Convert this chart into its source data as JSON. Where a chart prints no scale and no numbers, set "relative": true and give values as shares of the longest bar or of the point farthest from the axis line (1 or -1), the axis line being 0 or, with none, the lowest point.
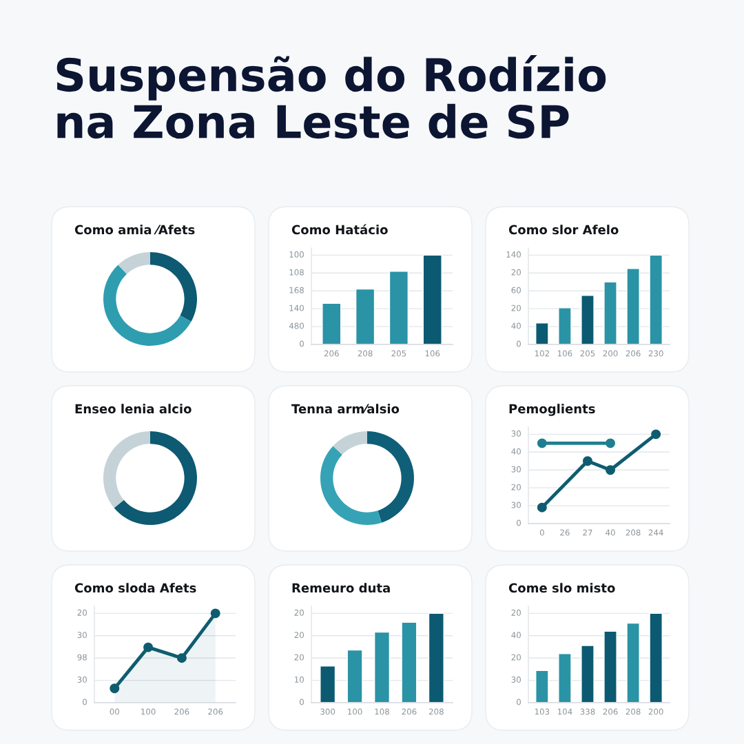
{
  "chart_data": [
    {
      "type": "other",
      "title": "Suspensão do Rodízio\nna Zona Leste de SP"
    },
    {
      "type": "donut",
      "title": "Como amia ⁄Afets",
      "values": [
        33,
        55,
        12
      ],
      "colors": [
        "#0d5a72",
        "#2f9db0",
        "#c5d3d8"
      ]
    },
    {
      "type": "bar",
      "title": "Como Hatácio",
      "relative": true,
      "categories": [
        "206",
        "208",
        "205",
        "106"
      ],
      "values": [
        0.46,
        0.62,
        0.82,
        1
      ],
      "colors": [
        "#2a93a6",
        "#2a93a6",
        "#2a93a6",
        "#0b5a72"
      ],
      "annotations": [
        "0",
        "480",
        "140",
        "168",
        "108",
        "100"
      ],
      "grid": "y"
    },
    {
      "type": "bar",
      "title": "Como slor Afelo",
      "relative": true,
      "categories": [
        "102",
        "106",
        "205",
        "200",
        "206",
        "230"
      ],
      "values": [
        0.24,
        0.41,
        0.55,
        0.7,
        0.85,
        1
      ],
      "colors": [
        "#0b5a72",
        "#2a93a6",
        "#0b5a72",
        "#2a93a6",
        "#2a93a6",
        "#2a93a6"
      ],
      "annotations": [
        "0",
        "40",
        "20",
        "60",
        "20",
        "140"
      ],
      "grid": "y"
    },
    {
      "type": "donut",
      "title": "Enseo lenia alcio",
      "values": [
        64,
        36
      ],
      "colors": [
        "#0d5a72",
        "#c5d3d8"
      ]
    },
    {
      "type": "donut",
      "title": "Tenna arm⁄alsio",
      "values": [
        45,
        42,
        13
      ],
      "colors": [
        "#0f5f78",
        "#35a3b5",
        "#c5d3d8"
      ]
    },
    {
      "type": "line",
      "title": "Pemoglients",
      "relative": true,
      "categories": [
        "0",
        "26",
        "27",
        "40",
        "208",
        "244"
      ],
      "series": [
        {
          "color": "#1f7f91",
          "x": [
            "0",
            "40"
          ],
          "values": [
            0.9,
            0.9
          ]
        },
        {
          "color": "#0f5c70",
          "x": [
            "0",
            "27",
            "40",
            "244"
          ],
          "values": [
            0.18,
            0.7,
            0.6,
            1
          ]
        }
      ],
      "annotations": [
        "0",
        "30",
        "20",
        "30",
        "40",
        "30"
      ],
      "grid": "y",
      "marker": "circle"
    },
    {
      "type": "area",
      "title": "Como sloda Afets",
      "relative": true,
      "categories": [
        "00",
        "100",
        "206",
        "206"
      ],
      "series": [
        {
          "color": "#0f5c70",
          "values": [
            0.16,
            0.62,
            0.5,
            1
          ]
        }
      ],
      "annotations": [
        "0",
        "30",
        "98",
        "30",
        "20"
      ],
      "grid": "y",
      "marker": "circle"
    },
    {
      "type": "bar",
      "title": "Remeuro duta",
      "relative": true,
      "categories": [
        "300",
        "100",
        "108",
        "206",
        "208"
      ],
      "values": [
        0.41,
        0.59,
        0.79,
        0.9,
        1
      ],
      "colors": [
        "#0b5a72",
        "#2a93a6",
        "#2a93a6",
        "#2a93a6",
        "#0b5a72"
      ],
      "annotations": [
        "0",
        "10",
        "20",
        "20",
        "20"
      ],
      "grid": "y"
    },
    {
      "type": "bar",
      "title": "Come slo misto",
      "relative": true,
      "categories": [
        "103",
        "104",
        "338",
        "206",
        "208",
        "200"
      ],
      "values": [
        0.36,
        0.55,
        0.64,
        0.8,
        0.89,
        1
      ],
      "colors": [
        "#2a93a6",
        "#2a93a6",
        "#0b5a72",
        "#0b5a72",
        "#2a93a6",
        "#0b5a72"
      ],
      "annotations": [
        "0",
        "30",
        "20",
        "40",
        "20"
      ],
      "grid": "y"
    }
  ]
}
